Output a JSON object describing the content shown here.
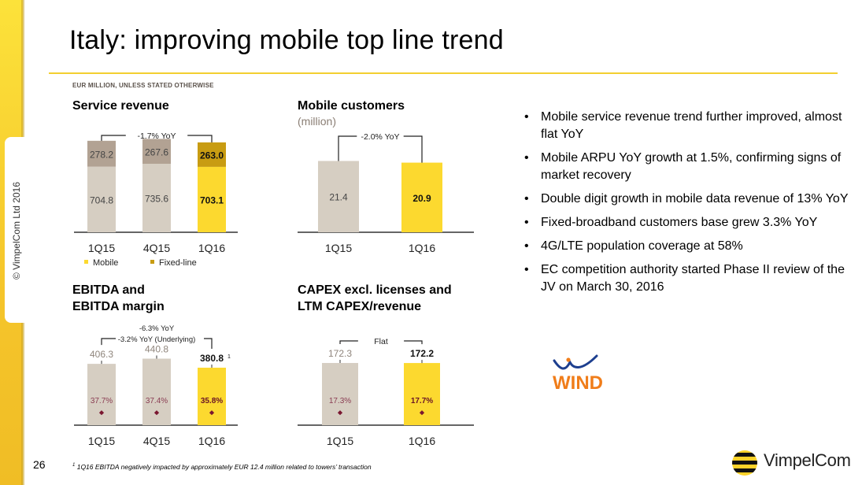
{
  "slide": {
    "title": "Italy: improving mobile top line trend",
    "units_note": "EUR MILLION, UNLESS STATED OTHERWISE",
    "copyright": "© VimpelCom Ltd 2016",
    "page_number": "26",
    "footnote_marker": "1",
    "footnote": "1Q16 EBITDA negatively impacted by approximately EUR 12.4 million related to towers’ transaction",
    "brand_logo": "VimpelCom",
    "partner_logo": "WIND",
    "colors": {
      "accent_yellow": "#fcd92f",
      "accent_yellow_dark": "#c89c12",
      "prior_period": "#d6cec2",
      "prior_period_dark": "#b2a293",
      "margin_marker": "#7a1630"
    }
  },
  "bullets": [
    "Mobile service revenue trend further improved, almost flat YoY",
    "Mobile ARPU YoY growth at 1.5%, confirming signs of market recovery",
    "Double digit growth in mobile data revenue of 13% YoY",
    "Fixed-broadband customers base grew 3.3% YoY",
    "4G/LTE population coverage at 58%",
    "EC competition authority started Phase II review of the JV on March 30, 2016"
  ],
  "chart_data": [
    {
      "id": "service_revenue",
      "type": "bar",
      "stacked": true,
      "title": "Service revenue",
      "subtitle": "",
      "categories": [
        "1Q15",
        "4Q15",
        "1Q16"
      ],
      "series": [
        {
          "name": "Mobile",
          "values": [
            704.8,
            735.6,
            703.1
          ],
          "labels": [
            "704.8",
            "735.6",
            "703.1"
          ]
        },
        {
          "name": "Fixed-line",
          "values": [
            278.2,
            267.6,
            263.0
          ],
          "labels": [
            "278.2",
            "267.6",
            "263.0"
          ]
        }
      ],
      "annotation": "-1.7% YoY",
      "annotation_from": "1Q15",
      "annotation_to": "1Q16",
      "legend": [
        "Mobile",
        "Fixed-line"
      ],
      "legend_position": "bottom-left",
      "highlight_category": "1Q16",
      "ylim": [
        0,
        1100
      ],
      "xlabel": "",
      "ylabel": "",
      "grid": false
    },
    {
      "id": "mobile_customers",
      "type": "bar",
      "title": "Mobile customers",
      "subtitle": "(million)",
      "categories": [
        "1Q15",
        "1Q16"
      ],
      "values": [
        21.4,
        20.9
      ],
      "labels": [
        "21.4",
        "20.9"
      ],
      "annotation": "-2.0% YoY",
      "annotation_from": "1Q15",
      "annotation_to": "1Q16",
      "highlight_category": "1Q16",
      "ylim": [
        0,
        26
      ],
      "xlabel": "",
      "ylabel": "",
      "grid": false
    },
    {
      "id": "ebitda",
      "type": "bar",
      "title": "EBITDA and\nEBITDA margin",
      "title_lines": [
        "EBITDA and",
        "EBITDA margin"
      ],
      "subtitle": "",
      "categories": [
        "1Q15",
        "4Q15",
        "1Q16"
      ],
      "values": [
        406.3,
        440.8,
        380.8
      ],
      "labels": [
        "406.3",
        "440.8",
        "380.8"
      ],
      "value_footnote": {
        "category": "1Q16",
        "marker": "1"
      },
      "secondary": {
        "name": "EBITDA margin",
        "values": [
          37.7,
          37.4,
          35.8
        ],
        "labels": [
          "37.7%",
          "37.4%",
          "35.8%"
        ]
      },
      "annotation_lines": [
        "-6.3% YoY",
        "-3.2% YoY (Underlying)"
      ],
      "annotation_from": "1Q15",
      "annotation_to": "1Q16",
      "highlight_category": "1Q16",
      "ylim": [
        0,
        600
      ],
      "xlabel": "",
      "ylabel": "",
      "grid": false
    },
    {
      "id": "capex",
      "type": "bar",
      "title": "CAPEX excl. licenses and\nLTM CAPEX/revenue",
      "title_lines": [
        "CAPEX excl. licenses and",
        "LTM CAPEX/revenue"
      ],
      "subtitle": "",
      "categories": [
        "1Q15",
        "1Q16"
      ],
      "values": [
        172.3,
        172.2
      ],
      "labels": [
        "172.3",
        "172.2"
      ],
      "secondary": {
        "name": "LTM CAPEX/revenue",
        "values": [
          17.3,
          17.7
        ],
        "labels": [
          "17.3%",
          "17.7%"
        ]
      },
      "annotation": "Flat",
      "annotation_from": "1Q15",
      "annotation_to": "1Q16",
      "highlight_category": "1Q16",
      "ylim": [
        0,
        240
      ],
      "xlabel": "",
      "ylabel": "",
      "grid": false
    }
  ]
}
